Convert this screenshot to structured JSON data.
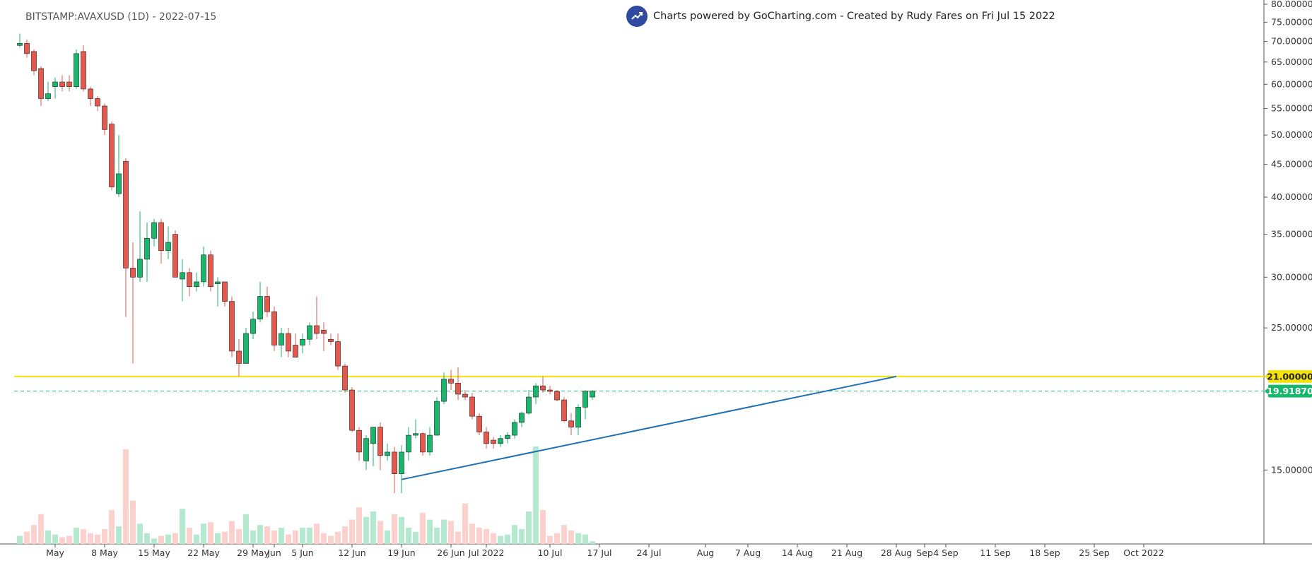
{
  "header": {
    "title": "BITSTAMP:AVAXUSD (1D) - 2022-07-15",
    "credit": "Charts powered by GoCharting.com - Created by Rudy Fares on Fri Jul 15 2022",
    "logo_icon": "trend-up-icon",
    "logo_color": "#2f4aa0"
  },
  "chart_data": {
    "type": "candlestick",
    "symbol": "BITSTAMP:AVAXUSD",
    "interval": "1D",
    "y_scale": "log",
    "ylim": [
      11.5,
      80
    ],
    "x_range": [
      "2022-04-26",
      "2022-10-03"
    ],
    "y_ticks": [
      "80.000000",
      "75.000000",
      "70.000000",
      "65.000000",
      "60.000000",
      "55.000000",
      "50.000000",
      "45.000000",
      "40.000000",
      "35.000000",
      "30.000000",
      "25.000000",
      "15.000000"
    ],
    "x_ticks": [
      {
        "date": "2022-05-01",
        "label": "May"
      },
      {
        "date": "2022-05-08",
        "label": "8 May"
      },
      {
        "date": "2022-05-15",
        "label": "15 May"
      },
      {
        "date": "2022-05-22",
        "label": "22 May"
      },
      {
        "date": "2022-05-29",
        "label": "29 May"
      },
      {
        "date": "2022-06-01",
        "label": "Jun"
      },
      {
        "date": "2022-06-05",
        "label": "5 Jun"
      },
      {
        "date": "2022-06-12",
        "label": "12 Jun"
      },
      {
        "date": "2022-06-19",
        "label": "19 Jun"
      },
      {
        "date": "2022-06-26",
        "label": "26 Jun"
      },
      {
        "date": "2022-07-01",
        "label": "Jul 2022"
      },
      {
        "date": "2022-07-10",
        "label": "10 Jul"
      },
      {
        "date": "2022-07-17",
        "label": "17 Jul"
      },
      {
        "date": "2022-07-24",
        "label": "24 Jul"
      },
      {
        "date": "2022-08-01",
        "label": "Aug"
      },
      {
        "date": "2022-08-07",
        "label": "7 Aug"
      },
      {
        "date": "2022-08-14",
        "label": "14 Aug"
      },
      {
        "date": "2022-08-21",
        "label": "21 Aug"
      },
      {
        "date": "2022-08-28",
        "label": "28 Aug"
      },
      {
        "date": "2022-09-01",
        "label": "Sep"
      },
      {
        "date": "2022-09-04",
        "label": "4 Sep"
      },
      {
        "date": "2022-09-11",
        "label": "11 Sep"
      },
      {
        "date": "2022-09-18",
        "label": "18 Sep"
      },
      {
        "date": "2022-09-25",
        "label": "25 Sep"
      },
      {
        "date": "2022-10-02",
        "label": "Oct 2022"
      }
    ],
    "candles": [
      {
        "date": "2022-04-26",
        "o": 69.0,
        "h": 72.0,
        "l": 68.5,
        "c": 69.5,
        "v": 6
      },
      {
        "date": "2022-04-27",
        "o": 69.5,
        "h": 70.5,
        "l": 66.0,
        "c": 67.0,
        "v": 9
      },
      {
        "date": "2022-04-28",
        "o": 67.5,
        "h": 68.0,
        "l": 62.0,
        "c": 63.0,
        "v": 14
      },
      {
        "date": "2022-04-29",
        "o": 63.5,
        "h": 64.0,
        "l": 55.5,
        "c": 57.0,
        "v": 22
      },
      {
        "date": "2022-04-30",
        "o": 57.0,
        "h": 60.5,
        "l": 56.5,
        "c": 58.0,
        "v": 10
      },
      {
        "date": "2022-05-01",
        "o": 59.5,
        "h": 61.5,
        "l": 57.0,
        "c": 60.5,
        "v": 7
      },
      {
        "date": "2022-05-02",
        "o": 60.5,
        "h": 62.0,
        "l": 58.5,
        "c": 59.5,
        "v": 5
      },
      {
        "date": "2022-05-03",
        "o": 60.5,
        "h": 62.0,
        "l": 58.5,
        "c": 59.5,
        "v": 6
      },
      {
        "date": "2022-05-04",
        "o": 59.5,
        "h": 68.0,
        "l": 59.0,
        "c": 67.0,
        "v": 12
      },
      {
        "date": "2022-05-05",
        "o": 67.5,
        "h": 69.0,
        "l": 58.5,
        "c": 59.0,
        "v": 11
      },
      {
        "date": "2022-05-06",
        "o": 59.0,
        "h": 59.5,
        "l": 55.5,
        "c": 57.0,
        "v": 8
      },
      {
        "date": "2022-05-07",
        "o": 57.0,
        "h": 57.5,
        "l": 54.5,
        "c": 55.5,
        "v": 7
      },
      {
        "date": "2022-05-08",
        "o": 55.5,
        "h": 56.0,
        "l": 50.0,
        "c": 51.0,
        "v": 11
      },
      {
        "date": "2022-05-09",
        "o": 52.0,
        "h": 52.5,
        "l": 41.0,
        "c": 41.5,
        "v": 25
      },
      {
        "date": "2022-05-10",
        "o": 40.5,
        "h": 50.0,
        "l": 40.0,
        "c": 43.5,
        "v": 13
      },
      {
        "date": "2022-05-11",
        "o": 45.5,
        "h": 46.0,
        "l": 26.0,
        "c": 31.0,
        "v": 70
      },
      {
        "date": "2022-05-12",
        "o": 31.0,
        "h": 34.0,
        "l": 22.0,
        "c": 30.0,
        "v": 32
      },
      {
        "date": "2022-05-13",
        "o": 30.0,
        "h": 38.0,
        "l": 29.5,
        "c": 32.0,
        "v": 15
      },
      {
        "date": "2022-05-14",
        "o": 32.0,
        "h": 36.5,
        "l": 29.5,
        "c": 34.5,
        "v": 8
      },
      {
        "date": "2022-05-15",
        "o": 34.5,
        "h": 37.0,
        "l": 33.5,
        "c": 36.5,
        "v": 4
      },
      {
        "date": "2022-05-16",
        "o": 36.5,
        "h": 37.0,
        "l": 31.5,
        "c": 33.0,
        "v": 6
      },
      {
        "date": "2022-05-17",
        "o": 33.0,
        "h": 36.0,
        "l": 32.0,
        "c": 34.0,
        "v": 7
      },
      {
        "date": "2022-05-18",
        "o": 35.0,
        "h": 35.5,
        "l": 30.0,
        "c": 30.0,
        "v": 8
      },
      {
        "date": "2022-05-19",
        "o": 29.8,
        "h": 32.0,
        "l": 27.5,
        "c": 30.5,
        "v": 26
      },
      {
        "date": "2022-05-20",
        "o": 30.5,
        "h": 31.0,
        "l": 28.0,
        "c": 29.0,
        "v": 12
      },
      {
        "date": "2022-05-21",
        "o": 29.0,
        "h": 30.5,
        "l": 28.5,
        "c": 29.5,
        "v": 7
      },
      {
        "date": "2022-05-22",
        "o": 29.5,
        "h": 33.5,
        "l": 29.0,
        "c": 32.5,
        "v": 15
      },
      {
        "date": "2022-05-23",
        "o": 32.5,
        "h": 33.0,
        "l": 28.5,
        "c": 29.0,
        "v": 16
      },
      {
        "date": "2022-05-24",
        "o": 29.3,
        "h": 30.0,
        "l": 27.0,
        "c": 29.5,
        "v": 8
      },
      {
        "date": "2022-05-25",
        "o": 29.5,
        "h": 29.5,
        "l": 27.0,
        "c": 27.5,
        "v": 9
      },
      {
        "date": "2022-05-26",
        "o": 27.5,
        "h": 28.0,
        "l": 22.5,
        "c": 23.0,
        "v": 17
      },
      {
        "date": "2022-05-27",
        "o": 23.0,
        "h": 24.0,
        "l": 21.0,
        "c": 22.0,
        "v": 11
      },
      {
        "date": "2022-05-28",
        "o": 22.0,
        "h": 25.0,
        "l": 22.0,
        "c": 24.5,
        "v": 22
      },
      {
        "date": "2022-05-29",
        "o": 24.5,
        "h": 26.5,
        "l": 24.0,
        "c": 25.8,
        "v": 10
      },
      {
        "date": "2022-05-30",
        "o": 25.8,
        "h": 29.5,
        "l": 25.5,
        "c": 28.0,
        "v": 14
      },
      {
        "date": "2022-05-31",
        "o": 28.0,
        "h": 29.0,
        "l": 26.0,
        "c": 26.5,
        "v": 13
      },
      {
        "date": "2022-06-01",
        "o": 26.5,
        "h": 27.0,
        "l": 23.0,
        "c": 23.5,
        "v": 10
      },
      {
        "date": "2022-06-02",
        "o": 23.5,
        "h": 25.0,
        "l": 22.5,
        "c": 24.5,
        "v": 12
      },
      {
        "date": "2022-06-03",
        "o": 24.5,
        "h": 25.0,
        "l": 22.5,
        "c": 23.0,
        "v": 7
      },
      {
        "date": "2022-06-04",
        "o": 23.5,
        "h": 24.5,
        "l": 22.8,
        "c": 22.5,
        "v": 10
      },
      {
        "date": "2022-06-05",
        "o": 23.5,
        "h": 24.5,
        "l": 22.8,
        "c": 24.0,
        "v": 12
      },
      {
        "date": "2022-06-06",
        "o": 24.0,
        "h": 25.5,
        "l": 23.5,
        "c": 25.2,
        "v": 12
      },
      {
        "date": "2022-06-07",
        "o": 25.2,
        "h": 28.0,
        "l": 24.0,
        "c": 24.5,
        "v": 15
      },
      {
        "date": "2022-06-08",
        "o": 24.8,
        "h": 25.5,
        "l": 23.0,
        "c": 24.5,
        "v": 8
      },
      {
        "date": "2022-06-09",
        "o": 24.0,
        "h": 24.5,
        "l": 23.5,
        "c": 23.8,
        "v": 6
      },
      {
        "date": "2022-06-10",
        "o": 23.8,
        "h": 24.5,
        "l": 21.5,
        "c": 21.8,
        "v": 9
      },
      {
        "date": "2022-06-11",
        "o": 21.8,
        "h": 22.0,
        "l": 19.8,
        "c": 20.0,
        "v": 13
      },
      {
        "date": "2022-06-12",
        "o": 20.0,
        "h": 20.2,
        "l": 17.2,
        "c": 17.3,
        "v": 18
      },
      {
        "date": "2022-06-13",
        "o": 17.3,
        "h": 17.5,
        "l": 15.5,
        "c": 16.0,
        "v": 27
      },
      {
        "date": "2022-06-14",
        "o": 15.5,
        "h": 17.0,
        "l": 15.0,
        "c": 16.8,
        "v": 20
      },
      {
        "date": "2022-06-15",
        "o": 16.5,
        "h": 17.5,
        "l": 15.2,
        "c": 17.5,
        "v": 24
      },
      {
        "date": "2022-06-16",
        "o": 17.5,
        "h": 17.8,
        "l": 15.0,
        "c": 15.8,
        "v": 17
      },
      {
        "date": "2022-06-17",
        "o": 15.8,
        "h": 16.5,
        "l": 15.5,
        "c": 16.0,
        "v": 10
      },
      {
        "date": "2022-06-18",
        "o": 16.0,
        "h": 16.3,
        "l": 13.8,
        "c": 14.8,
        "v": 22
      },
      {
        "date": "2022-06-19",
        "o": 14.8,
        "h": 16.4,
        "l": 13.8,
        "c": 16.0,
        "v": 20
      },
      {
        "date": "2022-06-20",
        "o": 16.0,
        "h": 17.5,
        "l": 15.5,
        "c": 17.0,
        "v": 12
      },
      {
        "date": "2022-06-21",
        "o": 17.0,
        "h": 18.0,
        "l": 16.8,
        "c": 17.1,
        "v": 9
      },
      {
        "date": "2022-06-22",
        "o": 17.1,
        "h": 17.2,
        "l": 15.8,
        "c": 16.0,
        "v": 23
      },
      {
        "date": "2022-06-23",
        "o": 16.0,
        "h": 17.5,
        "l": 15.8,
        "c": 17.0,
        "v": 18
      },
      {
        "date": "2022-06-24",
        "o": 17.0,
        "h": 19.5,
        "l": 17.0,
        "c": 19.2,
        "v": 12
      },
      {
        "date": "2022-06-25",
        "o": 19.2,
        "h": 21.3,
        "l": 19.0,
        "c": 20.8,
        "v": 18
      },
      {
        "date": "2022-06-26",
        "o": 20.8,
        "h": 21.5,
        "l": 20.0,
        "c": 20.5,
        "v": 17
      },
      {
        "date": "2022-06-27",
        "o": 20.5,
        "h": 21.7,
        "l": 19.3,
        "c": 19.7,
        "v": 9
      },
      {
        "date": "2022-06-28",
        "o": 19.7,
        "h": 20.0,
        "l": 19.3,
        "c": 19.5,
        "v": 30
      },
      {
        "date": "2022-06-29",
        "o": 19.5,
        "h": 19.8,
        "l": 18.0,
        "c": 18.2,
        "v": 15
      },
      {
        "date": "2022-06-30",
        "o": 18.2,
        "h": 18.4,
        "l": 17.0,
        "c": 17.2,
        "v": 12
      },
      {
        "date": "2022-07-01",
        "o": 17.2,
        "h": 17.5,
        "l": 16.2,
        "c": 16.5,
        "v": 11
      },
      {
        "date": "2022-07-02",
        "o": 16.7,
        "h": 16.9,
        "l": 16.2,
        "c": 16.5,
        "v": 8
      },
      {
        "date": "2022-07-03",
        "o": 16.5,
        "h": 17.0,
        "l": 16.3,
        "c": 16.8,
        "v": 6
      },
      {
        "date": "2022-07-04",
        "o": 16.8,
        "h": 17.2,
        "l": 16.5,
        "c": 17.0,
        "v": 7
      },
      {
        "date": "2022-07-05",
        "o": 17.0,
        "h": 18.0,
        "l": 16.8,
        "c": 17.8,
        "v": 14
      },
      {
        "date": "2022-07-06",
        "o": 17.8,
        "h": 18.5,
        "l": 17.5,
        "c": 18.4,
        "v": 11
      },
      {
        "date": "2022-07-07",
        "o": 18.4,
        "h": 20.0,
        "l": 18.3,
        "c": 19.5,
        "v": 24
      },
      {
        "date": "2022-07-08",
        "o": 19.5,
        "h": 20.5,
        "l": 19.0,
        "c": 20.3,
        "v": 72
      },
      {
        "date": "2022-07-09",
        "o": 20.3,
        "h": 21.0,
        "l": 19.8,
        "c": 20.0,
        "v": 25
      },
      {
        "date": "2022-07-10",
        "o": 20.0,
        "h": 20.3,
        "l": 19.7,
        "c": 19.9,
        "v": 6
      },
      {
        "date": "2022-07-11",
        "o": 19.9,
        "h": 20.0,
        "l": 19.2,
        "c": 19.3,
        "v": 8
      },
      {
        "date": "2022-07-12",
        "o": 19.3,
        "h": 19.5,
        "l": 17.8,
        "c": 17.9,
        "v": 14
      },
      {
        "date": "2022-07-13",
        "o": 17.9,
        "h": 18.4,
        "l": 17.0,
        "c": 17.5,
        "v": 10
      },
      {
        "date": "2022-07-14",
        "o": 17.5,
        "h": 19.0,
        "l": 17.0,
        "c": 18.8,
        "v": 8
      },
      {
        "date": "2022-07-15",
        "o": 18.8,
        "h": 20.0,
        "l": 18.0,
        "c": 19.92,
        "v": 7
      },
      {
        "date": "2022-07-16",
        "o": 19.5,
        "h": 20.0,
        "l": 19.3,
        "c": 19.92,
        "v": 2
      }
    ],
    "horizontal_line": {
      "value": 21.0,
      "label": "21.00000",
      "color": "#f2e30b"
    },
    "last_price": {
      "value": 19.9187,
      "label": "19.91870",
      "color": "#16b86b"
    },
    "trendline": {
      "start": {
        "date": "2022-06-19",
        "value": 14.5
      },
      "end": {
        "date": "2022-08-28",
        "value": 21.0
      },
      "color": "#1f6fb3"
    },
    "colors": {
      "up": "#16b86b",
      "down": "#e8574b",
      "vol_up": "#b5e9cf",
      "vol_down": "#fcd0cc",
      "grid": "#e6e6e6"
    }
  }
}
